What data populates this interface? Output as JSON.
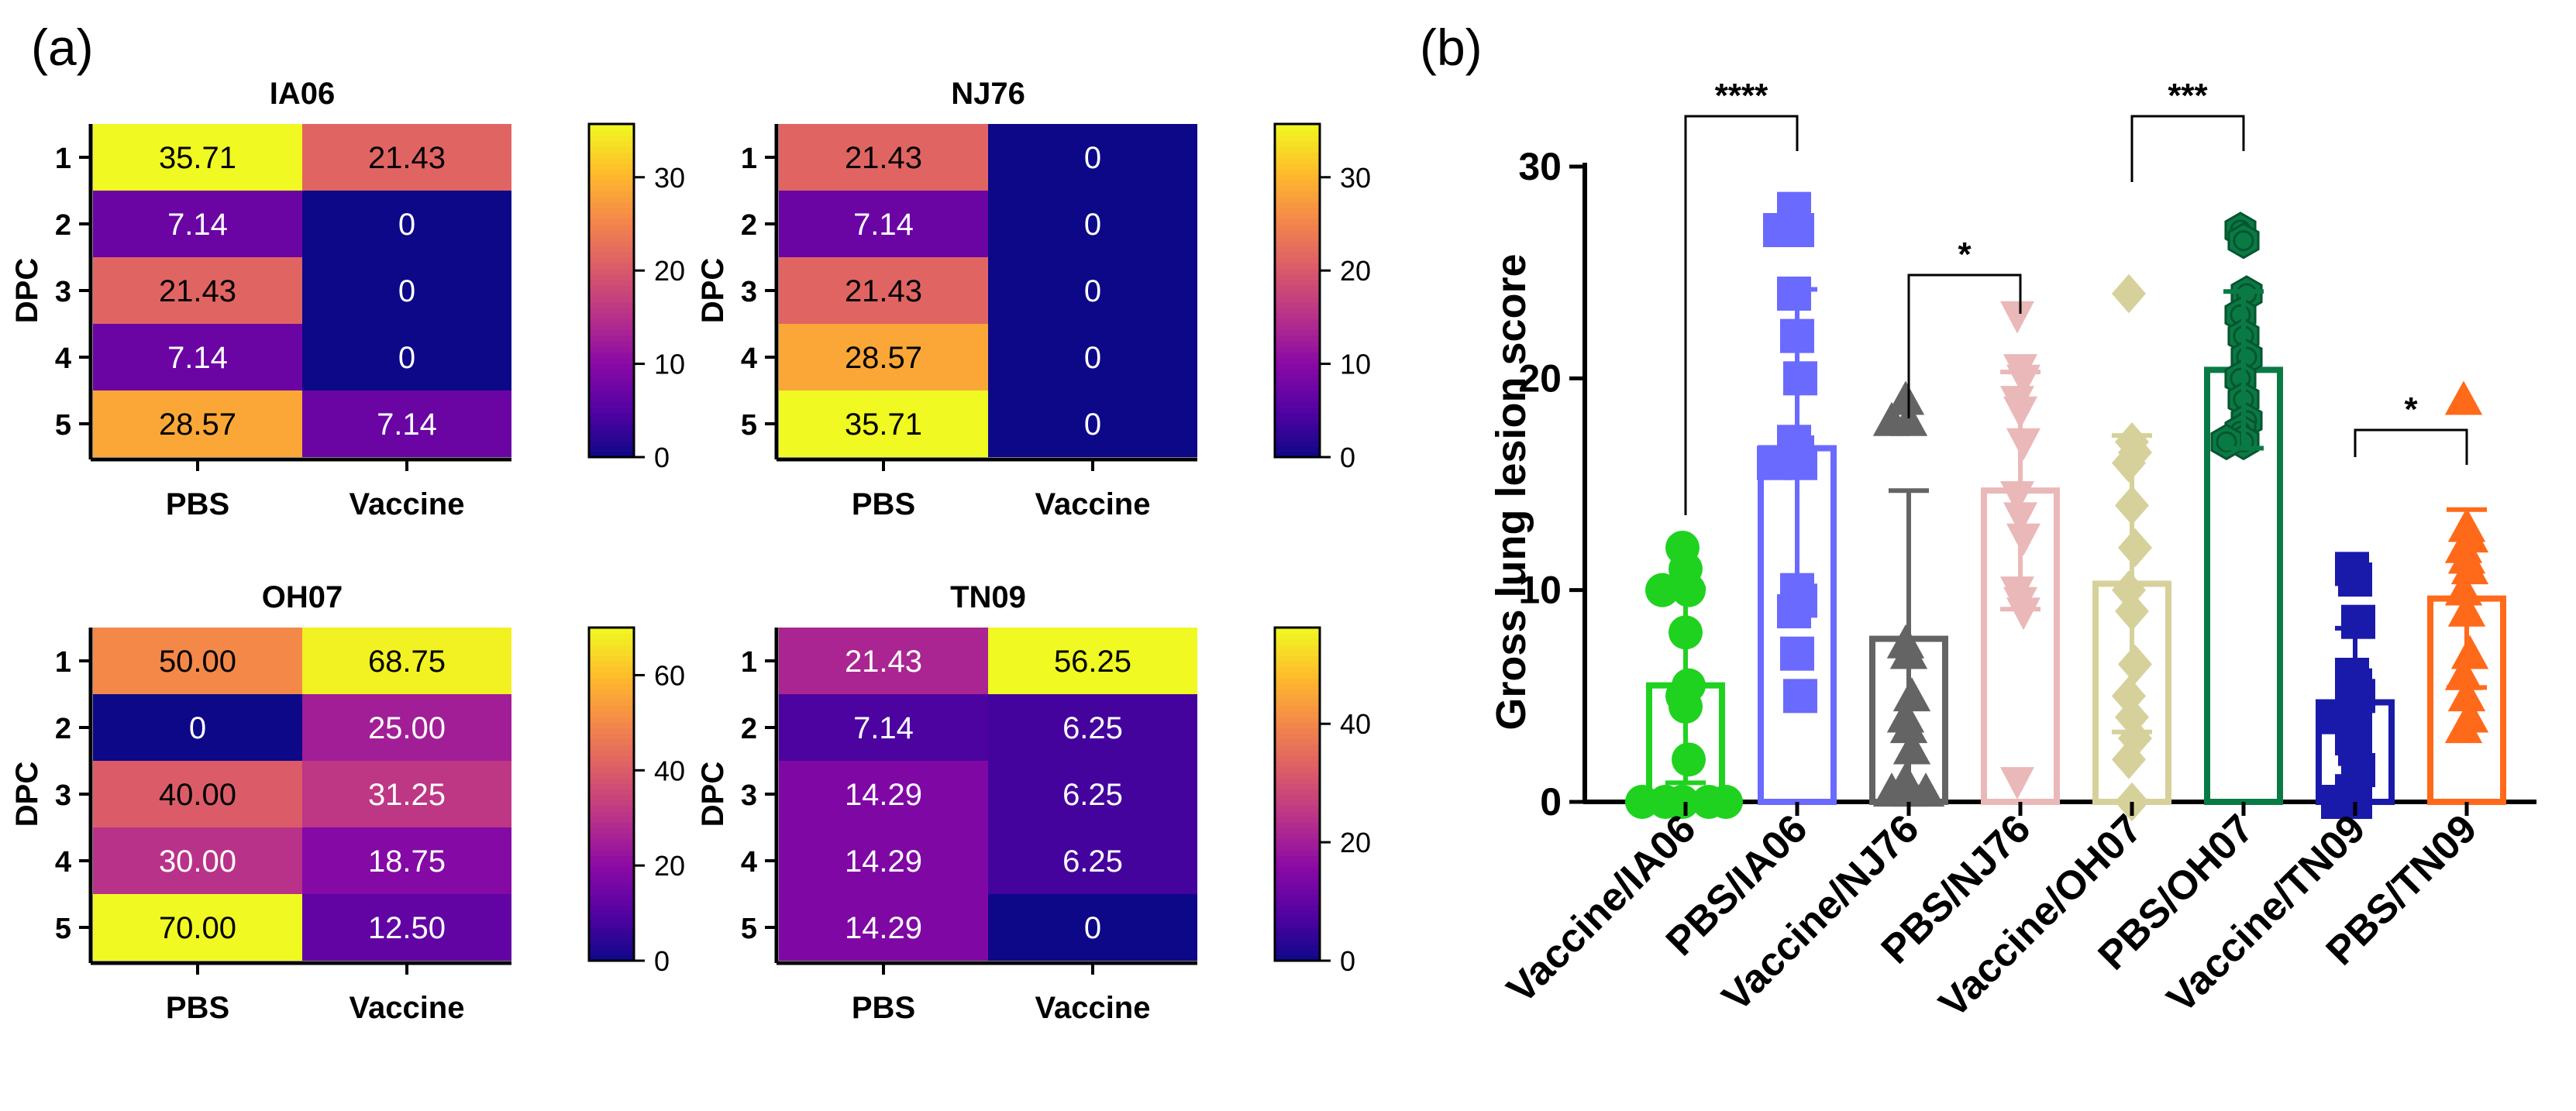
{
  "panel_a": {
    "label": "(a)"
  },
  "panel_b": {
    "label": "(b)"
  },
  "chart_data": [
    {
      "type": "heatmap",
      "title": "IA06",
      "ylabel": "DPC",
      "rows": [
        "1",
        "2",
        "3",
        "4",
        "5"
      ],
      "columns": [
        "PBS",
        "Vaccine"
      ],
      "values": [
        [
          35.71,
          21.43
        ],
        [
          7.14,
          0
        ],
        [
          21.43,
          0
        ],
        [
          7.14,
          0
        ],
        [
          28.57,
          7.14
        ]
      ],
      "labels": [
        [
          "35.71",
          "21.43"
        ],
        [
          "7.14",
          "0"
        ],
        [
          "21.43",
          "0"
        ],
        [
          "7.14",
          "0"
        ],
        [
          "28.57",
          "7.14"
        ]
      ],
      "colorbar_range": [
        0,
        35.71
      ],
      "colorbar_ticks": [
        0,
        10,
        20,
        30
      ],
      "colormap": "plasma"
    },
    {
      "type": "heatmap",
      "title": "NJ76",
      "ylabel": "DPC",
      "rows": [
        "1",
        "2",
        "3",
        "4",
        "5"
      ],
      "columns": [
        "PBS",
        "Vaccine"
      ],
      "values": [
        [
          21.43,
          0
        ],
        [
          7.14,
          0
        ],
        [
          21.43,
          0
        ],
        [
          28.57,
          0
        ],
        [
          35.71,
          0
        ]
      ],
      "labels": [
        [
          "21.43",
          "0"
        ],
        [
          "7.14",
          "0"
        ],
        [
          "21.43",
          "0"
        ],
        [
          "28.57",
          "0"
        ],
        [
          "35.71",
          "0"
        ]
      ],
      "colorbar_range": [
        0,
        35.71
      ],
      "colorbar_ticks": [
        0,
        10,
        20,
        30
      ],
      "colormap": "plasma"
    },
    {
      "type": "heatmap",
      "title": "OH07",
      "ylabel": "DPC",
      "rows": [
        "1",
        "2",
        "3",
        "4",
        "5"
      ],
      "columns": [
        "PBS",
        "Vaccine"
      ],
      "values": [
        [
          50.0,
          68.75
        ],
        [
          0,
          25.0
        ],
        [
          40.0,
          31.25
        ],
        [
          30.0,
          18.75
        ],
        [
          70.0,
          12.5
        ]
      ],
      "labels": [
        [
          "50.00",
          "68.75"
        ],
        [
          "0",
          "25.00"
        ],
        [
          "40.00",
          "31.25"
        ],
        [
          "30.00",
          "18.75"
        ],
        [
          "70.00",
          "12.50"
        ]
      ],
      "colorbar_range": [
        0,
        70
      ],
      "colorbar_ticks": [
        0,
        20,
        40,
        60
      ],
      "colormap": "plasma"
    },
    {
      "type": "heatmap",
      "title": "TN09",
      "ylabel": "DPC",
      "rows": [
        "1",
        "2",
        "3",
        "4",
        "5"
      ],
      "columns": [
        "PBS",
        "Vaccine"
      ],
      "values": [
        [
          21.43,
          56.25
        ],
        [
          7.14,
          6.25
        ],
        [
          14.29,
          6.25
        ],
        [
          14.29,
          6.25
        ],
        [
          14.29,
          0
        ]
      ],
      "labels": [
        [
          "21.43",
          "56.25"
        ],
        [
          "7.14",
          "6.25"
        ],
        [
          "14.29",
          "6.25"
        ],
        [
          "14.29",
          "6.25"
        ],
        [
          "14.29",
          "0"
        ]
      ],
      "colorbar_range": [
        0,
        56.25
      ],
      "colorbar_ticks": [
        0,
        20,
        40
      ],
      "colormap": "plasma"
    },
    {
      "type": "bar",
      "subtype": "bar-scatter-errorbar",
      "ylabel": "Gross lung lesion score",
      "ylim": [
        0,
        30
      ],
      "yticks": [
        0,
        10,
        20,
        30
      ],
      "categories": [
        "Vaccine/IA06",
        "PBS/IA06",
        "Vaccine/NJ76",
        "PBS/NJ76",
        "Vaccine/OH07",
        "PBS/OH07",
        "Vaccine/TN09",
        "PBS/TN09"
      ],
      "series": [
        {
          "name": "Vaccine/IA06",
          "mean": 5.5,
          "sd": 4.6,
          "color": "#1fd21f",
          "marker": "circle",
          "points": [
            12,
            11,
            10,
            10,
            8,
            5.5,
            5,
            4.5,
            2,
            0,
            0,
            0,
            0,
            0
          ]
        },
        {
          "name": "PBS/IA06",
          "mean": 16.7,
          "sd": 7.5,
          "color": "#6a6aff",
          "marker": "square",
          "points": [
            28,
            27,
            27,
            24,
            22,
            20,
            17,
            16.5,
            16,
            16,
            10,
            9.5,
            9,
            7,
            5
          ]
        },
        {
          "name": "Vaccine/NJ76",
          "mean": 7.7,
          "sd": 7.0,
          "color": "#646464",
          "marker": "triangle",
          "points": [
            19,
            18,
            18,
            7.5,
            7,
            5,
            4,
            3.5,
            2.5,
            1,
            0.5,
            0.5,
            0.5
          ]
        },
        {
          "name": "PBS/NJ76",
          "mean": 14.7,
          "sd": 5.6,
          "color": "#eab8b8",
          "marker": "triangle-down",
          "points": [
            23,
            20.5,
            20,
            19,
            18.5,
            17,
            14.5,
            13.5,
            12.5,
            10,
            9.5,
            9,
            1
          ]
        },
        {
          "name": "Vaccine/OH07",
          "mean": 10.3,
          "sd": 7.0,
          "color": "#d6d19a",
          "marker": "diamond",
          "points": [
            24,
            17,
            16.5,
            16,
            14,
            12,
            10,
            9,
            6.5,
            5,
            4,
            3,
            2,
            0
          ]
        },
        {
          "name": "PBS/OH07",
          "mean": 20.4,
          "sd": 3.7,
          "color": "#0a7a45",
          "marker": "hexagon",
          "points": [
            27,
            26.5,
            24,
            23,
            22,
            21,
            20,
            19,
            18,
            17.5,
            17,
            17
          ]
        },
        {
          "name": "Vaccine/TN09",
          "mean": 4.7,
          "sd": 3.5,
          "color": "#1a1aaa",
          "marker": "square",
          "points": [
            11,
            10.5,
            8.5,
            6,
            5.5,
            5,
            4.5,
            4,
            4,
            3,
            2.5,
            1.5,
            0.5,
            0,
            0
          ]
        },
        {
          "name": "PBS/TN09",
          "mean": 9.6,
          "sd": 4.2,
          "color": "#ff6a1a",
          "marker": "triangle",
          "points": [
            19,
            13,
            12.5,
            12,
            11.5,
            11,
            10,
            9,
            7,
            6,
            5,
            4,
            3.5
          ]
        }
      ],
      "significance": [
        {
          "pair": [
            0,
            1
          ],
          "label": "****"
        },
        {
          "pair": [
            2,
            3
          ],
          "label": "*"
        },
        {
          "pair": [
            4,
            5
          ],
          "label": "***"
        },
        {
          "pair": [
            6,
            7
          ],
          "label": "*"
        }
      ]
    }
  ]
}
